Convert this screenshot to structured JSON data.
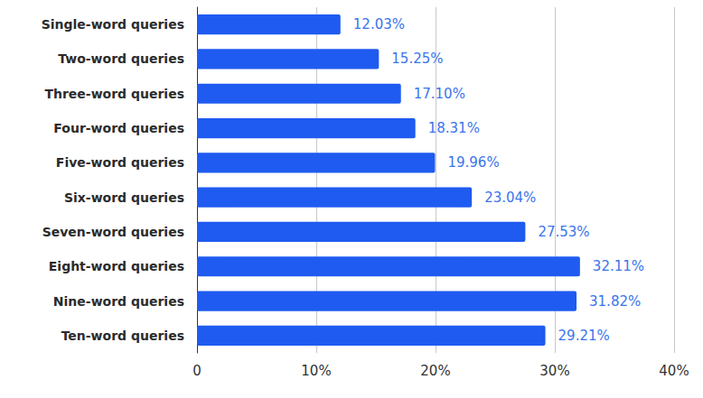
{
  "chart_data": {
    "type": "bar",
    "orientation": "horizontal",
    "categories": [
      "Single-word queries",
      "Two-word queries",
      "Three-word queries",
      "Four-word queries",
      "Five-word queries",
      "Six-word queries",
      "Seven-word queries",
      "Eight-word queries",
      "Nine-word queries",
      "Ten-word queries"
    ],
    "values": [
      12.03,
      15.25,
      17.1,
      18.31,
      19.96,
      23.04,
      27.53,
      32.11,
      31.82,
      29.21
    ],
    "value_labels": [
      "12.03%",
      "15.25%",
      "17.10%",
      "18.31%",
      "19.96%",
      "23.04%",
      "27.53%",
      "32.11%",
      "31.82%",
      "29.21%"
    ],
    "color": "#1f5bf0",
    "xlim": [
      0,
      40
    ],
    "xticks": [
      0,
      {
        "value": 10,
        "label": "10%"
      },
      {
        "value": 20,
        "label": "20%"
      },
      {
        "value": 30,
        "label": "30%"
      },
      {
        "value": 40,
        "label": "40%"
      }
    ],
    "grid": true,
    "data_labels": true
  }
}
